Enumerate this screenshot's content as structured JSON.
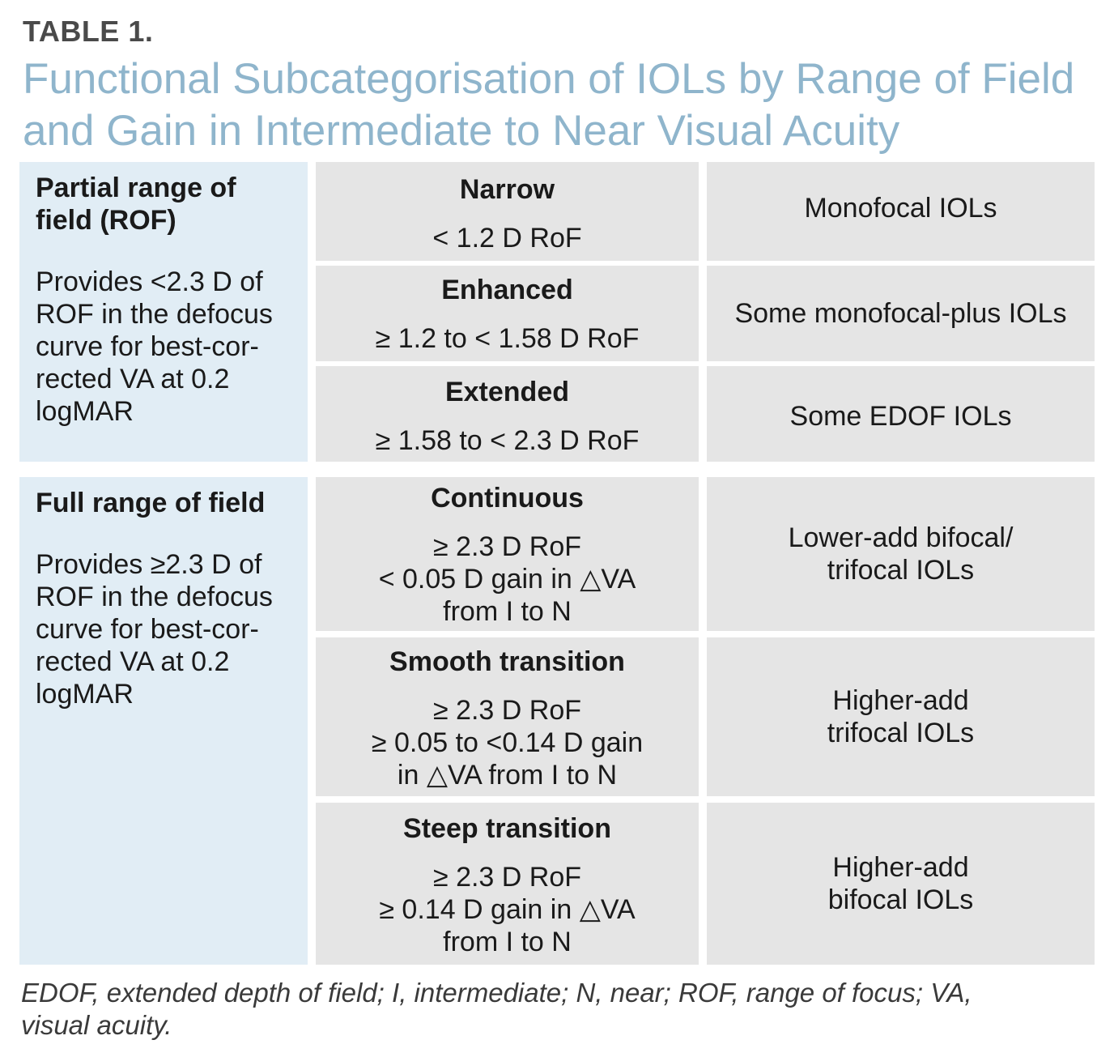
{
  "header": {
    "label": "TABLE 1.",
    "title": "Functional Subcategorisation of IOLs by Range of Field and Gain in Intermediate to Near Visual Acuity"
  },
  "groups": [
    {
      "heading": "Partial range of field (ROF)",
      "description": "Provides <2.3 D of ROF in the defocus curve for best-cor-rected VA at 0.2 logMAR",
      "rows": [
        {
          "category": "Narrow",
          "range": "< 1.2 D RoF",
          "iol": "Monofocal IOLs"
        },
        {
          "category": "Enhanced",
          "range": "≥ 1.2 to < 1.58 D RoF",
          "iol": "Some monofocal-plus IOLs"
        },
        {
          "category": "Extended",
          "range": "≥ 1.58 to < 2.3 D RoF",
          "iol": "Some EDOF IOLs"
        }
      ]
    },
    {
      "heading": "Full range of field",
      "description": "Provides ≥2.3 D of ROF in the defocus curve for best-cor-rected VA at 0.2 logMAR",
      "rows": [
        {
          "category": "Continuous",
          "range": "≥ 2.3 D RoF\n< 0.05 D gain in △VA\nfrom I to N",
          "iol": "Lower-add bifocal/ trifocal IOLs"
        },
        {
          "category": "Smooth transition",
          "range": "≥ 2.3 D RoF\n≥ 0.05 to <0.14 D gain\nin △VA from I to N",
          "iol": "Higher-add trifocal IOLs"
        },
        {
          "category": "Steep transition",
          "range": "≥ 2.3 D RoF\n≥ 0.14 D gain in △VA\nfrom I to N",
          "iol": "Higher-add bifocal IOLs"
        }
      ]
    }
  ],
  "footnote": "EDOF, extended depth of field; I, intermediate; N, near; ROF, range of focus; VA, visual acuity.",
  "colors": {
    "title": "#8fb5cc",
    "left_cell_bg": "#e1edf5",
    "cell_bg": "#e5e5e5"
  }
}
